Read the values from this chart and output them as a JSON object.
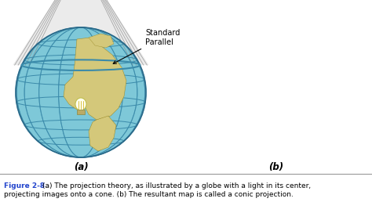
{
  "fig_width": 4.74,
  "fig_height": 2.58,
  "caption_bold": "Figure 2-8",
  "caption_text": "   (a) The projection theory, as illustrated by a globe with a light in its center,\nprojecting images onto a cone. (b) The resultant map is called a conic projection.",
  "label_a": "(a)",
  "label_b": "(b)",
  "annotation": "Standard\nParallel",
  "globe_ocean": "#7ec8d8",
  "globe_grid": "#3a8aaa",
  "globe_edge": "#2a6888",
  "land_color": "#d4c87a",
  "land_edge": "#a09030",
  "cone_fill": "#c8c8c8",
  "cone_edge": "#888888",
  "map_ocean": "#b8dde8",
  "map_grid": "#4a9ab8",
  "map_land": "#ddd899",
  "caption_color": "#2244cc",
  "divider_color": "#999999"
}
